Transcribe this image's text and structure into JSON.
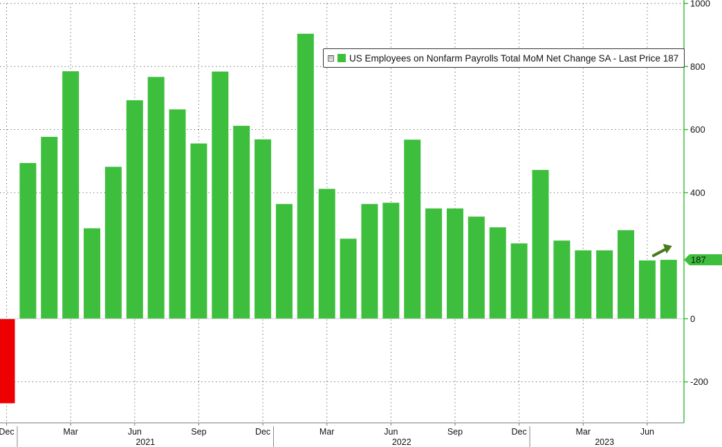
{
  "chart_data": {
    "type": "bar",
    "legend": {
      "label": "US Employees on Nonfarm Payrolls Total MoM Net Change SA - Last Price 187",
      "placement": "top-right",
      "collapse_symbol": "⊟"
    },
    "x": [
      "2020-12",
      "2021-01",
      "2021-02",
      "2021-03",
      "2021-04",
      "2021-05",
      "2021-06",
      "2021-07",
      "2021-08",
      "2021-09",
      "2021-10",
      "2021-11",
      "2021-12",
      "2022-01",
      "2022-02",
      "2022-03",
      "2022-04",
      "2022-05",
      "2022-06",
      "2022-07",
      "2022-08",
      "2022-09",
      "2022-10",
      "2022-11",
      "2022-12",
      "2023-01",
      "2023-02",
      "2023-03",
      "2023-04",
      "2023-05",
      "2023-06",
      "2023-07"
    ],
    "values": [
      -268,
      494,
      577,
      785,
      287,
      482,
      693,
      767,
      664,
      556,
      784,
      612,
      569,
      364,
      904,
      412,
      254,
      364,
      368,
      568,
      350,
      350,
      324,
      290,
      239,
      472,
      248,
      217,
      217,
      281,
      185,
      187
    ],
    "y_ticks": [
      -200,
      0,
      400,
      600,
      800,
      1000
    ],
    "ylim": [
      -330,
      1000
    ],
    "last_value_label": "187",
    "month_labels": [
      "Dec",
      "Mar",
      "Jun",
      "Sep",
      "Dec",
      "Mar",
      "Jun",
      "Sep",
      "Dec",
      "Mar",
      "Jun"
    ],
    "year_labels": [
      "2021",
      "2022",
      "2023"
    ],
    "grid": true,
    "colors": {
      "positive": "#3dbf3d",
      "negative": "#ee0000",
      "axis": "#3dbf3d",
      "last_price_tag": "#3dbf3d",
      "arrow": "#4a7a1a",
      "grid": "#555555"
    }
  }
}
